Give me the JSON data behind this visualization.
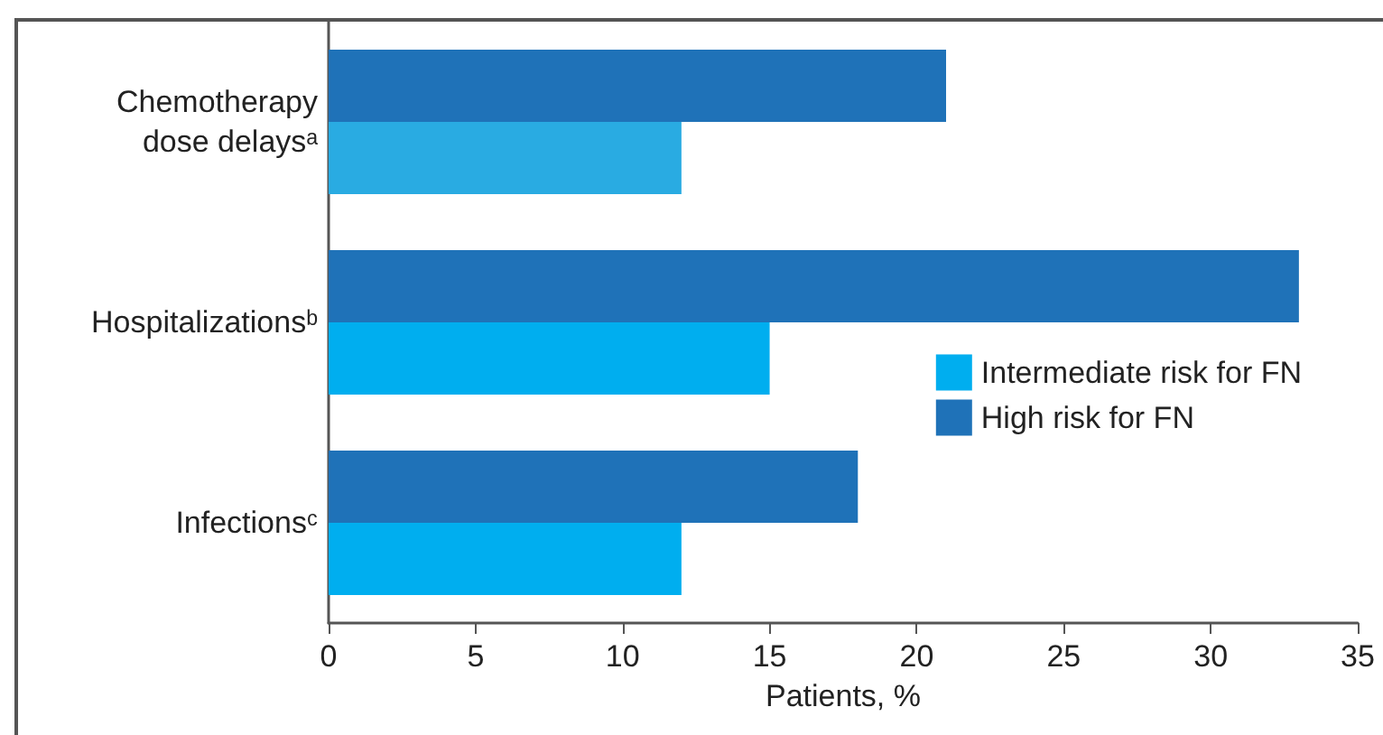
{
  "chart_data": {
    "type": "bar",
    "orientation": "horizontal",
    "categories": [
      "Chemotherapy\ndose delaysᵃ",
      "Hospitalizationsᵇ",
      "Infectionsᶜ"
    ],
    "series": [
      {
        "name": "Intermediate risk for FN",
        "color": "#00aeef",
        "colors": [
          "#29abe2",
          "#00aeef",
          "#00aeef"
        ],
        "values": [
          12,
          15,
          12
        ]
      },
      {
        "name": "High risk for FN",
        "color": "#1f72b8",
        "values": [
          21,
          33,
          18
        ]
      }
    ],
    "xlabel": "Patients, %",
    "xlim": [
      0,
      35
    ],
    "xticks": [
      0,
      5,
      10,
      15,
      20,
      25,
      30,
      35
    ],
    "grid": false,
    "legend": "right"
  }
}
